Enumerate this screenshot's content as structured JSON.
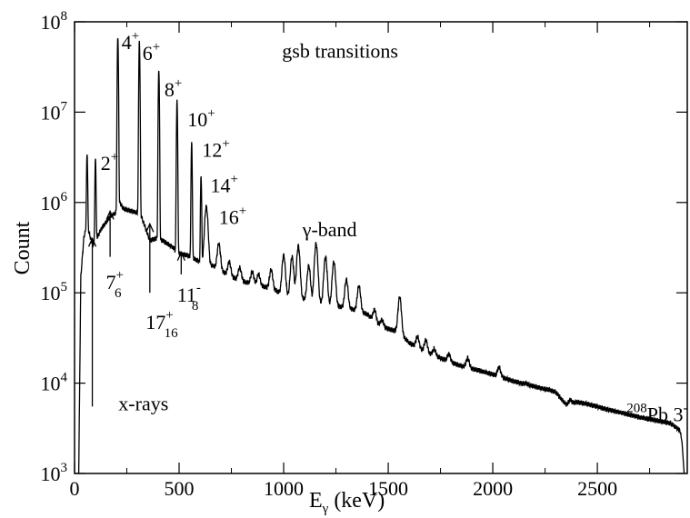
{
  "chart_data": {
    "type": "line",
    "xlabel": "E",
    "xlabel_sub": "γ",
    "xlabel_unit": " (keV)",
    "ylabel": "Count",
    "xlim": [
      0,
      2930
    ],
    "ylim": [
      1000,
      100000000
    ],
    "y_scale": "log",
    "grid": false,
    "x_ticks": [
      {
        "value": 0,
        "label": "0"
      },
      {
        "value": 500,
        "label": "500"
      },
      {
        "value": 1000,
        "label": "1000"
      },
      {
        "value": 1500,
        "label": "1500"
      },
      {
        "value": 2000,
        "label": "2000"
      },
      {
        "value": 2500,
        "label": "2500"
      }
    ],
    "y_ticks": [
      {
        "exp": 3,
        "base": "10",
        "sup": "3"
      },
      {
        "exp": 4,
        "base": "10",
        "sup": "4"
      },
      {
        "exp": 5,
        "base": "10",
        "sup": "5"
      },
      {
        "exp": 6,
        "base": "10",
        "sup": "6"
      },
      {
        "exp": 7,
        "base": "10",
        "sup": "7"
      },
      {
        "exp": 8,
        "base": "10",
        "sup": "8"
      }
    ],
    "baseline": [
      [
        20,
        1000
      ],
      [
        30,
        150000
      ],
      [
        45,
        420000
      ],
      [
        60,
        550000
      ],
      [
        80,
        380000
      ],
      [
        95,
        330000
      ],
      [
        110,
        420000
      ],
      [
        130,
        520000
      ],
      [
        150,
        600000
      ],
      [
        170,
        700000
      ],
      [
        190,
        750000
      ],
      [
        205,
        800000
      ],
      [
        215,
        1000000
      ],
      [
        235,
        850000
      ],
      [
        260,
        820000
      ],
      [
        290,
        780000
      ],
      [
        315,
        740000
      ],
      [
        330,
        600000
      ],
      [
        360,
        380000
      ],
      [
        390,
        400000
      ],
      [
        420,
        380000
      ],
      [
        445,
        350000
      ],
      [
        470,
        320000
      ],
      [
        490,
        280000
      ],
      [
        510,
        270000
      ],
      [
        540,
        260000
      ],
      [
        570,
        240000
      ],
      [
        600,
        220000
      ],
      [
        630,
        210000
      ],
      [
        660,
        200000
      ],
      [
        700,
        175000
      ],
      [
        750,
        150000
      ],
      [
        800,
        135000
      ],
      [
        850,
        125000
      ],
      [
        900,
        118000
      ],
      [
        950,
        110000
      ],
      [
        1000,
        95000
      ],
      [
        1050,
        90000
      ],
      [
        1100,
        85000
      ],
      [
        1150,
        80000
      ],
      [
        1200,
        75000
      ],
      [
        1250,
        72000
      ],
      [
        1300,
        68000
      ],
      [
        1350,
        64000
      ],
      [
        1400,
        58000
      ],
      [
        1450,
        45000
      ],
      [
        1500,
        40000
      ],
      [
        1550,
        37000
      ],
      [
        1600,
        28000
      ],
      [
        1650,
        24000
      ],
      [
        1700,
        21000
      ],
      [
        1750,
        19000
      ],
      [
        1800,
        17000
      ],
      [
        1850,
        15500
      ],
      [
        1900,
        14500
      ],
      [
        1950,
        13500
      ],
      [
        2000,
        12500
      ],
      [
        2050,
        11500
      ],
      [
        2100,
        10500
      ],
      [
        2150,
        9800
      ],
      [
        2200,
        9200
      ],
      [
        2250,
        8600
      ],
      [
        2300,
        8000
      ],
      [
        2350,
        5800
      ],
      [
        2380,
        6000
      ],
      [
        2400,
        6200
      ],
      [
        2450,
        5900
      ],
      [
        2500,
        5500
      ],
      [
        2550,
        5100
      ],
      [
        2600,
        4800
      ],
      [
        2650,
        4500
      ],
      [
        2700,
        4200
      ],
      [
        2750,
        4000
      ],
      [
        2800,
        3800
      ],
      [
        2850,
        3600
      ],
      [
        2880,
        3200
      ],
      [
        2895,
        3000
      ],
      [
        2905,
        2200
      ],
      [
        2915,
        1000
      ]
    ],
    "peaks": [
      {
        "x": 60,
        "y": 3500000
      },
      {
        "x": 100,
        "y": 3000000
      },
      {
        "x": 207,
        "y": 70000000
      },
      {
        "x": 310,
        "y": 60000000
      },
      {
        "x": 403,
        "y": 30000000
      },
      {
        "x": 490,
        "y": 13000000
      },
      {
        "x": 560,
        "y": 4500000
      },
      {
        "x": 605,
        "y": 2000000
      },
      {
        "x": 630,
        "y": 900000
      },
      {
        "x": 690,
        "y": 350000
      },
      {
        "x": 740,
        "y": 220000
      },
      {
        "x": 790,
        "y": 190000
      },
      {
        "x": 850,
        "y": 170000
      },
      {
        "x": 880,
        "y": 160000
      },
      {
        "x": 940,
        "y": 180000
      },
      {
        "x": 1000,
        "y": 260000
      },
      {
        "x": 1040,
        "y": 250000
      },
      {
        "x": 1070,
        "y": 330000
      },
      {
        "x": 1120,
        "y": 200000
      },
      {
        "x": 1155,
        "y": 350000
      },
      {
        "x": 1200,
        "y": 250000
      },
      {
        "x": 1240,
        "y": 220000
      },
      {
        "x": 1300,
        "y": 140000
      },
      {
        "x": 1360,
        "y": 120000
      },
      {
        "x": 1435,
        "y": 65000
      },
      {
        "x": 1470,
        "y": 50000
      },
      {
        "x": 1555,
        "y": 90000
      },
      {
        "x": 1640,
        "y": 33000
      },
      {
        "x": 1680,
        "y": 30000
      },
      {
        "x": 1720,
        "y": 24000
      },
      {
        "x": 1790,
        "y": 21000
      },
      {
        "x": 1880,
        "y": 19000
      },
      {
        "x": 2030,
        "y": 15000
      },
      {
        "x": 2160,
        "y": 10000
      },
      {
        "x": 2270,
        "y": 8500
      },
      {
        "x": 2370,
        "y": 6500
      }
    ],
    "annotations": [
      {
        "id": "gsb",
        "text": "gsb transitions",
        "x": 1270,
        "y": 40000000
      },
      {
        "id": "gamma-band",
        "text": "γ-band",
        "x": 1090,
        "y": 420000
      },
      {
        "id": "x-rays",
        "text": "x-rays",
        "x": 210,
        "y": 5000
      },
      {
        "id": "pb",
        "pre_sup": "208",
        "text": "Pb 3",
        "sup": "-",
        "x": 2640,
        "y": 3800
      }
    ],
    "peak_labels": [
      {
        "base": "2",
        "sup": "+",
        "x": 125,
        "y": 2300000
      },
      {
        "base": "4",
        "sup": "+",
        "x": 225,
        "y": 50000000
      },
      {
        "base": "6",
        "sup": "+",
        "x": 325,
        "y": 38000000
      },
      {
        "base": "8",
        "sup": "+",
        "x": 430,
        "y": 15000000
      },
      {
        "base": "10",
        "sup": "+",
        "x": 540,
        "y": 7000000
      },
      {
        "base": "12",
        "sup": "+",
        "x": 610,
        "y": 3200000
      },
      {
        "base": "14",
        "sup": "+",
        "x": 650,
        "y": 1300000
      },
      {
        "base": "16",
        "sup": "+",
        "x": 690,
        "y": 580000
      }
    ],
    "arrow_labels": [
      {
        "base": "7",
        "sup": "+",
        "sub": "6",
        "arrow_x": 170,
        "arrow_from": 250000,
        "arrow_to": 800000,
        "label_x": 150,
        "label_y": 110000
      },
      {
        "base": "17",
        "sup": "+",
        "sub": "16",
        "arrow_x": 360,
        "arrow_from": 100000,
        "arrow_to": 580000,
        "label_x": 340,
        "label_y": 40000
      },
      {
        "base": "11",
        "sup": "-",
        "sub": "8",
        "arrow_x": 510,
        "arrow_from": 160000,
        "arrow_to": 280000,
        "label_x": 490,
        "label_y": 80000
      },
      {
        "base": "",
        "sup": "",
        "sub": "",
        "arrow_x": 85,
        "arrow_from": 5500,
        "arrow_to": 400000,
        "label_x": 0,
        "label_y": 0
      }
    ]
  }
}
